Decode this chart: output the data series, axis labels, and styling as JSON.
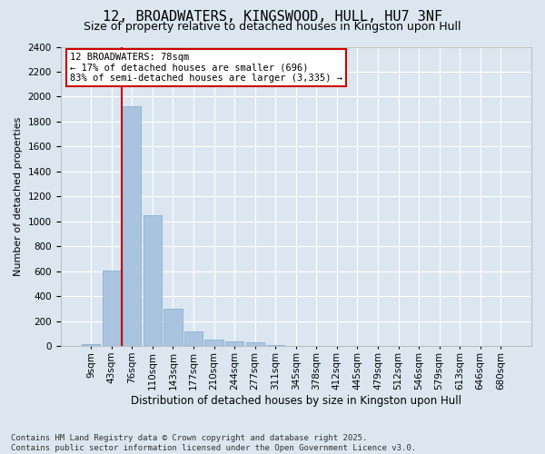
{
  "title": "12, BROADWATERS, KINGSWOOD, HULL, HU7 3NF",
  "subtitle": "Size of property relative to detached houses in Kingston upon Hull",
  "xlabel": "Distribution of detached houses by size in Kingston upon Hull",
  "ylabel": "Number of detached properties",
  "categories": [
    "9sqm",
    "43sqm",
    "76sqm",
    "110sqm",
    "143sqm",
    "177sqm",
    "210sqm",
    "244sqm",
    "277sqm",
    "311sqm",
    "345sqm",
    "378sqm",
    "412sqm",
    "445sqm",
    "479sqm",
    "512sqm",
    "546sqm",
    "579sqm",
    "613sqm",
    "646sqm",
    "680sqm"
  ],
  "values": [
    15,
    605,
    1920,
    1050,
    300,
    120,
    50,
    40,
    30,
    10,
    0,
    0,
    0,
    0,
    0,
    0,
    0,
    0,
    0,
    0,
    0
  ],
  "bar_color": "#aac4e0",
  "bar_edgecolor": "#7aaad0",
  "property_line_bar_index": 2,
  "annotation_text": "12 BROADWATERS: 78sqm\n← 17% of detached houses are smaller (696)\n83% of semi-detached houses are larger (3,335) →",
  "annotation_box_facecolor": "#ffffff",
  "annotation_box_edgecolor": "#cc0000",
  "red_line_color": "#cc0000",
  "ylim": [
    0,
    2400
  ],
  "yticks": [
    0,
    200,
    400,
    600,
    800,
    1000,
    1200,
    1400,
    1600,
    1800,
    2000,
    2200,
    2400
  ],
  "background_color": "#dce6f0",
  "plot_background_color": "#dce6f0",
  "footer": "Contains HM Land Registry data © Crown copyright and database right 2025.\nContains public sector information licensed under the Open Government Licence v3.0.",
  "title_fontsize": 11,
  "subtitle_fontsize": 9,
  "xlabel_fontsize": 8.5,
  "ylabel_fontsize": 8,
  "tick_fontsize": 7.5,
  "annotation_fontsize": 7.5,
  "footer_fontsize": 6.5
}
